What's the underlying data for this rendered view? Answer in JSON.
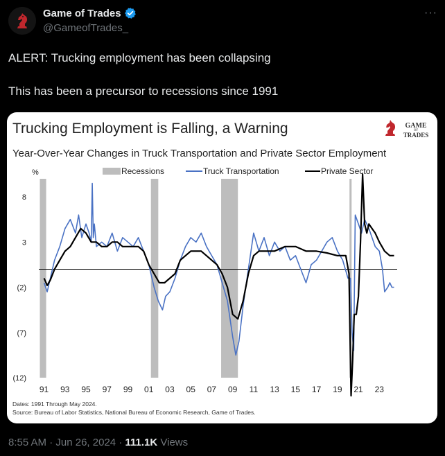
{
  "post": {
    "author_name": "Game of Trades",
    "author_handle": "@GameofTrades_",
    "more_icon": "more-icon",
    "text_line1": "ALERT: Trucking employment has been collapsing",
    "text_line2": "This has been a precursor to recessions since 1991",
    "time": "8:55 AM",
    "sep": "·",
    "date": "Jun 26, 2024",
    "views_count": "111.1K",
    "views_label": "Views"
  },
  "chart_data": {
    "type": "line",
    "title": "Trucking Employment is Falling, a Warning",
    "subtitle": "Year-Over-Year Changes in Truck Transportation and Private Sector Employment",
    "logo_text": [
      "GAME",
      "OF",
      "TRADES"
    ],
    "ylabel": "%",
    "ylim": [
      -12,
      10
    ],
    "yticks": [
      8,
      3,
      -2,
      -7,
      -12
    ],
    "ytick_labels": [
      "8",
      "3",
      "(2)",
      "(7)",
      "(12)"
    ],
    "xlim": [
      1990.5,
      2024.7
    ],
    "xticks": [
      1991,
      1993,
      1995,
      1997,
      1999,
      2001,
      2003,
      2005,
      2007,
      2009,
      2011,
      2013,
      2015,
      2017,
      2019,
      2021,
      2023
    ],
    "xtick_labels": [
      "91",
      "93",
      "95",
      "97",
      "99",
      "01",
      "03",
      "05",
      "07",
      "09",
      "11",
      "13",
      "15",
      "17",
      "19",
      "21",
      "23"
    ],
    "legend": [
      "Recessions",
      "Truck Transportation",
      "Private Sector"
    ],
    "recessions": [
      [
        1990.6,
        1991.2
      ],
      [
        2001.2,
        2001.9
      ],
      [
        2007.9,
        2009.5
      ],
      [
        2020.15,
        2020.35
      ]
    ],
    "colors": {
      "truck": "#4a72c4",
      "private": "#000000",
      "recession": "#bdbdbd",
      "title": "#222222"
    },
    "series": [
      {
        "name": "Truck Transportation",
        "x": [
          1991.0,
          1991.3,
          1991.6,
          1992.0,
          1992.5,
          1993.0,
          1993.5,
          1994.0,
          1994.3,
          1994.6,
          1995.0,
          1995.3,
          1995.5,
          1995.6,
          1995.7,
          1995.8,
          1996.0,
          1996.5,
          1997.0,
          1997.5,
          1998.0,
          1998.5,
          1999.0,
          1999.5,
          2000.0,
          2000.5,
          2001.0,
          2001.5,
          2001.9,
          2002.3,
          2002.6,
          2003.0,
          2003.5,
          2004.0,
          2004.5,
          2005.0,
          2005.5,
          2006.0,
          2006.5,
          2007.0,
          2007.5,
          2008.0,
          2008.5,
          2009.0,
          2009.3,
          2009.6,
          2010.0,
          2010.5,
          2011.0,
          2011.5,
          2012.0,
          2012.5,
          2013.0,
          2013.5,
          2014.0,
          2014.5,
          2015.0,
          2015.5,
          2016.0,
          2016.5,
          2017.0,
          2017.5,
          2018.0,
          2018.5,
          2019.0,
          2019.5,
          2020.0,
          2020.25,
          2020.4,
          2020.55,
          2020.7,
          2021.0,
          2021.3,
          2021.6,
          2022.0,
          2022.3,
          2022.6,
          2023.0,
          2023.3,
          2023.5,
          2023.8,
          2024.0,
          2024.2,
          2024.4
        ],
        "values": [
          -1.5,
          -2.5,
          -1.0,
          1.0,
          2.5,
          4.5,
          5.5,
          4.0,
          6.0,
          3.5,
          5.0,
          4.0,
          3.0,
          9.5,
          3.5,
          5.0,
          2.5,
          3.0,
          2.5,
          4.0,
          2.0,
          3.5,
          3.0,
          2.5,
          3.5,
          2.0,
          0.5,
          -2.0,
          -3.5,
          -4.5,
          -3.0,
          -2.5,
          -1.0,
          1.0,
          2.5,
          3.5,
          3.0,
          4.0,
          2.5,
          1.5,
          0.5,
          -1.5,
          -3.5,
          -7.5,
          -9.5,
          -8.0,
          -4.0,
          0.0,
          4.0,
          2.0,
          3.5,
          1.5,
          3.0,
          2.0,
          2.5,
          1.0,
          1.5,
          0.0,
          -1.5,
          0.5,
          1.0,
          2.0,
          3.0,
          3.5,
          2.0,
          1.0,
          -1.0,
          -1.0,
          -7.0,
          -9.0,
          6.0,
          5.0,
          4.0,
          5.5,
          4.5,
          3.5,
          2.5,
          2.0,
          0.0,
          -2.5,
          -2.0,
          -1.5,
          -2.0,
          -2.0
        ]
      },
      {
        "name": "Private Sector",
        "x": [
          1991.0,
          1991.3,
          1991.6,
          1992.0,
          1992.5,
          1993.0,
          1993.5,
          1994.0,
          1994.5,
          1995.0,
          1995.5,
          1996.0,
          1996.5,
          1997.0,
          1997.5,
          1998.0,
          1998.5,
          1999.0,
          1999.5,
          2000.0,
          2000.5,
          2001.0,
          2001.5,
          2002.0,
          2002.5,
          2003.0,
          2003.5,
          2004.0,
          2004.5,
          2005.0,
          2005.5,
          2006.0,
          2006.5,
          2007.0,
          2007.5,
          2008.0,
          2008.5,
          2009.0,
          2009.5,
          2010.0,
          2010.5,
          2011.0,
          2011.5,
          2012.0,
          2013.0,
          2014.0,
          2015.0,
          2016.0,
          2017.0,
          2018.0,
          2019.0,
          2019.8,
          2020.1,
          2020.3,
          2020.45,
          2020.6,
          2020.8,
          2021.0,
          2021.2,
          2021.4,
          2021.6,
          2021.8,
          2022.0,
          2022.3,
          2022.6,
          2023.0,
          2023.5,
          2024.0,
          2024.4
        ],
        "values": [
          -1.0,
          -1.8,
          -1.2,
          0.0,
          1.0,
          2.0,
          2.5,
          3.5,
          4.5,
          4.0,
          3.0,
          3.0,
          2.5,
          2.5,
          3.0,
          3.0,
          2.5,
          2.5,
          2.5,
          2.5,
          2.0,
          0.5,
          -0.5,
          -1.5,
          -1.5,
          -1.0,
          -0.5,
          1.0,
          1.5,
          2.0,
          2.0,
          2.0,
          1.5,
          1.0,
          0.5,
          -0.5,
          -2.0,
          -5.0,
          -5.5,
          -3.5,
          -0.5,
          1.5,
          2.0,
          2.0,
          2.0,
          2.5,
          2.5,
          2.0,
          2.0,
          1.8,
          1.5,
          1.5,
          -0.5,
          -14.0,
          -10.0,
          -5.0,
          -5.0,
          -3.0,
          3.0,
          10.5,
          5.0,
          4.0,
          5.0,
          4.5,
          4.0,
          3.0,
          2.0,
          1.5,
          1.5
        ]
      }
    ],
    "footnote_dates": "Dates: 1991 Through May 2024.",
    "footnote_source": "Source: Bureau of Labor Statistics, National Bureau of Economic Research, Game of Trades."
  }
}
